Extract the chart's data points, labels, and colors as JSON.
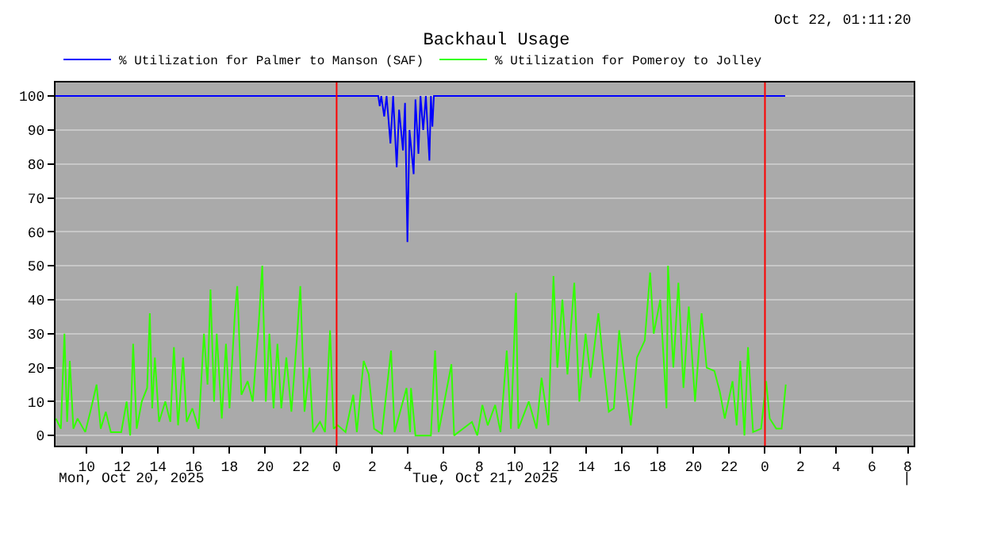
{
  "chart_data": {
    "type": "line",
    "title": "Backhaul Usage",
    "annotations": [
      "Oct 22, 01:11:20",
      "Mon, Oct 20, 2025",
      "Tue, Oct 21, 2025",
      "|"
    ],
    "legend": "top left",
    "grid": "y",
    "marker": "none",
    "line_style": "solid",
    "xlim": [
      "2025-10-20T08:15",
      "2025-10-22T08:20"
    ],
    "xticks": [
      {
        "value": "2025-10-20T10:00",
        "label": "10"
      },
      {
        "value": "2025-10-20T12:00",
        "label": "12"
      },
      {
        "value": "2025-10-20T14:00",
        "label": "14"
      },
      {
        "value": "2025-10-20T16:00",
        "label": "16"
      },
      {
        "value": "2025-10-20T18:00",
        "label": "18"
      },
      {
        "value": "2025-10-20T20:00",
        "label": "20"
      },
      {
        "value": "2025-10-20T22:00",
        "label": "22"
      },
      {
        "value": "2025-10-21T00:00",
        "label": "0"
      },
      {
        "value": "2025-10-21T02:00",
        "label": "2"
      },
      {
        "value": "2025-10-21T04:00",
        "label": "4"
      },
      {
        "value": "2025-10-21T06:00",
        "label": "6"
      },
      {
        "value": "2025-10-21T08:00",
        "label": "8"
      },
      {
        "value": "2025-10-21T10:00",
        "label": "10"
      },
      {
        "value": "2025-10-21T12:00",
        "label": "12"
      },
      {
        "value": "2025-10-21T14:00",
        "label": "14"
      },
      {
        "value": "2025-10-21T16:00",
        "label": "16"
      },
      {
        "value": "2025-10-21T18:00",
        "label": "18"
      },
      {
        "value": "2025-10-21T20:00",
        "label": "20"
      },
      {
        "value": "2025-10-21T22:00",
        "label": "22"
      },
      {
        "value": "2025-10-22T00:00",
        "label": "0"
      },
      {
        "value": "2025-10-22T02:00",
        "label": "2"
      },
      {
        "value": "2025-10-22T04:00",
        "label": "4"
      },
      {
        "value": "2025-10-22T06:00",
        "label": "6"
      },
      {
        "value": "2025-10-22T08:00",
        "label": "8"
      }
    ],
    "ylim": [
      -3,
      104
    ],
    "yticks": [
      0,
      10,
      20,
      30,
      40,
      50,
      60,
      70,
      80,
      90,
      100
    ],
    "ref_lines": [
      {
        "axis": "x",
        "value": "2025-10-21T00:00",
        "color": "#ff0000"
      },
      {
        "axis": "x",
        "value": "2025-10-22T00:00",
        "color": "#ff0000"
      }
    ],
    "series": [
      {
        "name": "% Utilization for Palmer to Manson (SAF)",
        "color": "#0000ff",
        "x": [
          "2025-10-20T08:15",
          "2025-10-21T02:20",
          "2025-10-21T02:25",
          "2025-10-21T02:30",
          "2025-10-21T02:40",
          "2025-10-21T02:48",
          "2025-10-21T03:01",
          "2025-10-21T03:10",
          "2025-10-21T03:22",
          "2025-10-21T03:30",
          "2025-10-21T03:43",
          "2025-10-21T03:50",
          "2025-10-21T03:58",
          "2025-10-21T04:05",
          "2025-10-21T04:19",
          "2025-10-21T04:25",
          "2025-10-21T04:35",
          "2025-10-21T04:42",
          "2025-10-21T04:51",
          "2025-10-21T05:00",
          "2025-10-21T05:12",
          "2025-10-21T05:17",
          "2025-10-21T05:22",
          "2025-10-21T05:27",
          "2025-10-22T01:08"
        ],
        "values": [
          100,
          100,
          97,
          100,
          94,
          100,
          86,
          100,
          79,
          96,
          84,
          98,
          57,
          90,
          77,
          99,
          83,
          100,
          90,
          100,
          81,
          100,
          91,
          100,
          100
        ]
      },
      {
        "name": "% Utilization for Pomeroy to Jolley",
        "color": "#33ff00",
        "x": [
          "2025-10-20T08:16",
          "2025-10-20T08:33",
          "2025-10-20T08:45",
          "2025-10-20T08:54",
          "2025-10-20T09:03",
          "2025-10-20T09:15",
          "2025-10-20T09:29",
          "2025-10-20T09:55",
          "2025-10-20T10:12",
          "2025-10-20T10:33",
          "2025-10-20T10:47",
          "2025-10-20T11:04",
          "2025-10-20T11:21",
          "2025-10-20T11:56",
          "2025-10-20T12:14",
          "2025-10-20T12:26",
          "2025-10-20T12:36",
          "2025-10-20T12:48",
          "2025-10-20T13:05",
          "2025-10-20T13:23",
          "2025-10-20T13:32",
          "2025-10-20T13:40",
          "2025-10-20T13:49",
          "2025-10-20T14:03",
          "2025-10-20T14:24",
          "2025-10-20T14:41",
          "2025-10-20T14:53",
          "2025-10-20T15:07",
          "2025-10-20T15:24",
          "2025-10-20T15:36",
          "2025-10-20T15:55",
          "2025-10-20T16:16",
          "2025-10-20T16:34",
          "2025-10-20T16:46",
          "2025-10-20T16:56",
          "2025-10-20T17:08",
          "2025-10-20T17:17",
          "2025-10-20T17:34",
          "2025-10-20T17:48",
          "2025-10-20T18:00",
          "2025-10-20T18:18",
          "2025-10-20T18:26",
          "2025-10-20T18:40",
          "2025-10-20T19:01",
          "2025-10-20T19:18",
          "2025-10-20T19:39",
          "2025-10-20T19:50",
          "2025-10-20T20:02",
          "2025-10-20T20:14",
          "2025-10-20T20:28",
          "2025-10-20T20:41",
          "2025-10-20T20:54",
          "2025-10-20T21:11",
          "2025-10-20T21:28",
          "2025-10-20T21:46",
          "2025-10-20T21:58",
          "2025-10-20T22:12",
          "2025-10-20T22:29",
          "2025-10-20T22:41",
          "2025-10-20T23:04",
          "2025-10-20T23:21",
          "2025-10-20T23:38",
          "2025-10-20T23:50",
          "2025-10-21T00:04",
          "2025-10-21T00:30",
          "2025-10-21T00:56",
          "2025-10-21T01:08",
          "2025-10-21T01:31",
          "2025-10-21T01:48",
          "2025-10-21T02:06",
          "2025-10-21T02:32",
          "2025-10-21T03:03",
          "2025-10-21T03:15",
          "2025-10-21T03:55",
          "2025-10-21T04:07",
          "2025-10-21T04:10",
          "2025-10-21T04:25",
          "2025-10-21T05:17",
          "2025-10-21T05:31",
          "2025-10-21T05:43",
          "2025-10-21T06:26",
          "2025-10-21T06:35",
          "2025-10-21T07:35",
          "2025-10-21T07:53",
          "2025-10-21T08:10",
          "2025-10-21T08:28",
          "2025-10-21T08:53",
          "2025-10-21T09:11",
          "2025-10-21T09:32",
          "2025-10-21T09:46",
          "2025-10-21T10:03",
          "2025-10-21T10:11",
          "2025-10-21T10:46",
          "2025-10-21T11:12",
          "2025-10-21T11:29",
          "2025-10-21T11:52",
          "2025-10-21T12:09",
          "2025-10-21T12:22",
          "2025-10-21T12:39",
          "2025-10-21T12:56",
          "2025-10-21T13:19",
          "2025-10-21T13:36",
          "2025-10-21T13:57",
          "2025-10-21T14:14",
          "2025-10-21T14:40",
          "2025-10-21T14:58",
          "2025-10-21T15:15",
          "2025-10-21T15:32",
          "2025-10-21T15:50",
          "2025-10-21T16:07",
          "2025-10-21T16:29",
          "2025-10-21T16:50",
          "2025-10-21T17:16",
          "2025-10-21T17:34",
          "2025-10-21T17:46",
          "2025-10-21T18:08",
          "2025-10-21T18:29",
          "2025-10-21T18:34",
          "2025-10-21T18:52",
          "2025-10-21T19:09",
          "2025-10-21T19:26",
          "2025-10-21T19:44",
          "2025-10-21T20:05",
          "2025-10-21T20:27",
          "2025-10-21T20:44",
          "2025-10-21T21:10",
          "2025-10-21T21:28",
          "2025-10-21T21:45",
          "2025-10-21T22:11",
          "2025-10-21T22:25",
          "2025-10-21T22:37",
          "2025-10-21T22:51",
          "2025-10-21T23:03",
          "2025-10-21T23:20",
          "2025-10-21T23:47",
          "2025-10-22T00:04",
          "2025-10-22T00:16",
          "2025-10-22T00:38",
          "2025-10-22T00:56",
          "2025-10-22T01:10"
        ],
        "values": [
          5,
          2,
          30,
          4,
          22,
          2,
          5,
          1,
          7,
          15,
          2,
          7,
          1,
          1,
          10,
          0,
          27,
          2,
          10,
          14,
          36,
          8,
          23,
          4,
          10,
          4,
          26,
          3,
          23,
          4,
          8,
          2,
          30,
          15,
          43,
          10,
          30,
          5,
          27,
          8,
          36,
          44,
          12,
          16,
          10,
          34,
          50,
          10,
          30,
          8,
          27,
          8,
          23,
          7,
          28,
          44,
          7,
          20,
          1,
          4,
          1,
          31,
          2,
          3,
          1,
          12,
          1,
          22,
          18,
          2,
          0.5,
          25,
          1,
          14,
          1,
          14,
          0,
          0,
          25,
          1,
          21,
          0,
          4,
          0,
          9,
          3,
          9,
          1,
          25,
          2,
          42,
          2,
          10,
          2,
          17,
          3,
          47,
          20,
          40,
          18,
          45,
          10,
          30,
          17,
          36,
          20,
          7,
          8,
          31,
          18,
          3,
          23,
          28,
          48,
          30,
          40,
          8,
          50,
          20,
          45,
          14,
          38,
          10,
          36,
          20,
          19,
          13,
          5,
          16,
          3,
          22,
          0,
          26,
          1,
          2,
          16,
          5,
          2,
          2,
          15
        ]
      }
    ]
  }
}
